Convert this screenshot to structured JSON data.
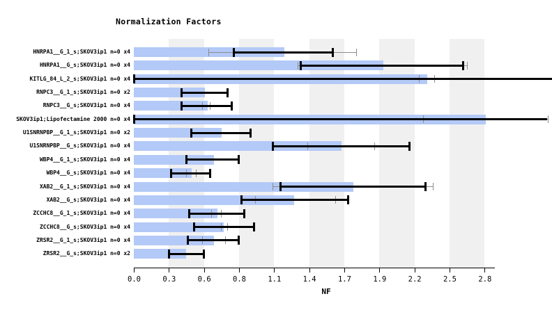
{
  "chart_data": {
    "type": "bar",
    "orientation": "horizontal",
    "title": "Normalization Factors",
    "xlabel": "NF",
    "xlim": [
      0,
      3.4
    ],
    "grid": "alternating-vertical-bands",
    "axis": {
      "tick_labels": [
        "0.0",
        "0.3",
        "0.6",
        "0.8",
        "1.1",
        "1.4",
        "1.7",
        "1.9",
        "2.2",
        "2.5",
        "2.8"
      ],
      "tick_values": [
        0.0,
        0.28,
        0.56,
        0.84,
        1.12,
        1.4,
        1.68,
        1.96,
        2.24,
        2.52,
        2.8
      ],
      "shaded_band_intervals": [
        [
          0.28,
          0.56
        ],
        [
          0.84,
          1.12
        ],
        [
          1.4,
          1.68
        ],
        [
          1.96,
          2.24
        ],
        [
          2.52,
          2.8
        ]
      ]
    },
    "colors": {
      "bar": "#b3c9f7",
      "band": "#f0f0f0",
      "error_bar": "#000000",
      "gray_error": "#8c8c8c",
      "background": "#ffffff"
    },
    "rows": [
      {
        "label": "HNRPA1__G_1_s;SKOV3ip1 n=0 x4",
        "nf": 1.2,
        "err": [
          0.8,
          1.59
        ],
        "err_caps": [
          true,
          true
        ],
        "gray": [
          0.6,
          1.78
        ]
      },
      {
        "label": "HNRPA1__G_s;SKOV3ip1 n=0 x4",
        "nf": 1.99,
        "err": [
          1.33,
          2.63
        ],
        "err_caps": [
          true,
          true
        ],
        "gray": [
          1.31,
          2.66
        ]
      },
      {
        "label": "KITLG_84_L_2_s;SKOV3ip1 n=0 x4",
        "nf": 2.34,
        "err": [
          0.0,
          3.4
        ],
        "err_caps": [
          true,
          false
        ],
        "gray": [
          2.28,
          2.4
        ]
      },
      {
        "label": "RNPC3__G_1_s;SKOV3ip1 n=0 x2",
        "nf": 0.57,
        "err": [
          0.38,
          0.75
        ],
        "err_caps": [
          true,
          true
        ],
        "gray": null
      },
      {
        "label": "RNPC3__G_s;SKOV3ip1 n=0 x4",
        "nf": 0.59,
        "err": [
          0.38,
          0.78
        ],
        "err_caps": [
          true,
          true
        ],
        "gray": [
          0.55,
          0.61
        ]
      },
      {
        "label": "SKOV3ip1;Lipofectamine 2000 n=0 x4",
        "nf": 2.81,
        "err": [
          0.0,
          3.3
        ],
        "err_caps": [
          true,
          false
        ],
        "gray": [
          2.31,
          3.31
        ]
      },
      {
        "label": "U1SNRNPBP__G_1_s;SKOV3ip1 n=0 x2",
        "nf": 0.7,
        "err": [
          0.46,
          0.93
        ],
        "err_caps": [
          true,
          true
        ],
        "gray": null
      },
      {
        "label": "U1SNRNPBP__G_s;SKOV3ip1 n=0 x4",
        "nf": 1.66,
        "err": [
          1.11,
          2.2
        ],
        "err_caps": [
          true,
          true
        ],
        "gray": [
          1.39,
          1.92
        ]
      },
      {
        "label": "WBP4__G_1_s;SKOV3ip1 n=0 x4",
        "nf": 0.64,
        "err": [
          0.42,
          0.84
        ],
        "err_caps": [
          true,
          true
        ],
        "gray": null
      },
      {
        "label": "WBP4__G_s;SKOV3ip1 n=0 x4",
        "nf": 0.46,
        "err": [
          0.3,
          0.61
        ],
        "err_caps": [
          true,
          true
        ],
        "gray": [
          0.42,
          0.5
        ]
      },
      {
        "label": "XAB2__G_1_s;SKOV3ip1 n=0 x4",
        "nf": 1.75,
        "err": [
          1.17,
          2.33
        ],
        "err_caps": [
          true,
          true
        ],
        "gray": [
          1.11,
          2.39
        ]
      },
      {
        "label": "XAB2__G_s;SKOV3ip1 n=0 x4",
        "nf": 1.28,
        "err": [
          0.86,
          1.71
        ],
        "err_caps": [
          true,
          true
        ],
        "gray": [
          0.97,
          1.61
        ]
      },
      {
        "label": "ZCCHC8__G_1_s;SKOV3ip1 n=0 x4",
        "nf": 0.67,
        "err": [
          0.44,
          0.88
        ],
        "err_caps": [
          true,
          true
        ],
        "gray": [
          0.62,
          0.7
        ]
      },
      {
        "label": "ZCCHC8__G_s;SKOV3ip1 n=0 x4",
        "nf": 0.72,
        "err": [
          0.48,
          0.96
        ],
        "err_caps": [
          true,
          true
        ],
        "gray": [
          0.7,
          0.75
        ]
      },
      {
        "label": "ZRSR2__G_1_s;SKOV3ip1 n=0 x4",
        "nf": 0.64,
        "err": [
          0.43,
          0.84
        ],
        "err_caps": [
          true,
          true
        ],
        "gray": [
          0.55,
          0.73
        ]
      },
      {
        "label": "ZRSR2__G_s;SKOV3ip1 n=0 x2",
        "nf": 0.42,
        "err": [
          0.28,
          0.56
        ],
        "err_caps": [
          true,
          true
        ],
        "gray": null
      }
    ]
  }
}
